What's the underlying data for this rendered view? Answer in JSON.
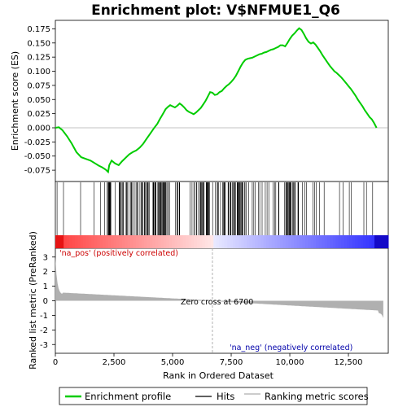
{
  "chart_data": {
    "type": "line",
    "title": "Enrichment plot: V$NFMUE1_Q6",
    "xlabel": "Rank in Ordered Dataset",
    "ylabel_top": "Enrichment score (ES)",
    "ylabel_bottom": "Ranked list metric (PreRanked)",
    "xlim": [
      0,
      14200
    ],
    "ylim_top": [
      -0.095,
      0.19
    ],
    "ylim_bottom": [
      -3.6,
      3.6
    ],
    "x_ticks": [
      0,
      2500,
      5000,
      7500,
      10000,
      12500
    ],
    "x_tick_labels": [
      "0",
      "2,500",
      "5,000",
      "7,500",
      "10,000",
      "12,500"
    ],
    "y_ticks_top": [
      0.175,
      0.15,
      0.125,
      0.1,
      0.075,
      0.05,
      0.025,
      0.0,
      -0.025,
      -0.05,
      -0.075
    ],
    "y_tick_labels_top": [
      "0.175",
      "0.150",
      "0.125",
      "0.100",
      "0.075",
      "0.050",
      "0.025",
      "0.000",
      "-0.025",
      "-0.050",
      "-0.075"
    ],
    "y_ticks_bottom": [
      3,
      2,
      1,
      0,
      -1,
      -2,
      -3
    ],
    "y_tick_labels_bottom": [
      "3",
      "2",
      "1",
      "0",
      "-1",
      "-2",
      "-3"
    ],
    "zero_cross_rank": 6700,
    "zero_cross_label": "Zero cross at 6700",
    "pos_label": "'na_pos' (positively correlated)",
    "neg_label": "'na_neg' (negatively correlated)",
    "colors": {
      "es_line": "#00cc00",
      "pos_text": "#cc0000",
      "neg_text": "#0000aa",
      "hit_line": "#000000",
      "metric_fill": "#b0b0b0",
      "zero_cross_line": "#a0a0a0"
    },
    "series": [
      {
        "name": "Enrichment profile",
        "x": [
          0,
          150,
          300,
          500,
          700,
          900,
          1100,
          1300,
          1500,
          1700,
          1850,
          2000,
          2150,
          2250,
          2300,
          2400,
          2550,
          2700,
          2850,
          3000,
          3150,
          3300,
          3450,
          3600,
          3750,
          3900,
          4050,
          4200,
          4350,
          4450,
          4550,
          4650,
          4700,
          4800,
          4900,
          5000,
          5100,
          5200,
          5300,
          5400,
          5500,
          5600,
          5700,
          5800,
          5900,
          6000,
          6100,
          6200,
          6300,
          6400,
          6500,
          6600,
          6700,
          6800,
          6900,
          7000,
          7100,
          7200,
          7300,
          7400,
          7500,
          7600,
          7700,
          7800,
          7900,
          8000,
          8100,
          8200,
          8300,
          8400,
          8500,
          8600,
          8700,
          8800,
          8900,
          9000,
          9100,
          9200,
          9300,
          9400,
          9500,
          9600,
          9700,
          9800,
          9900,
          10000,
          10100,
          10200,
          10300,
          10400,
          10500,
          10600,
          10700,
          10800,
          10900,
          11000,
          11100,
          11200,
          11300,
          11400,
          11500,
          11600,
          11700,
          11800,
          11900,
          12000,
          12100,
          12200,
          12300,
          12400,
          12500,
          12600,
          12700,
          12800,
          12900,
          13000,
          13100,
          13200,
          13300,
          13400,
          13500,
          13600,
          13700
        ],
        "y": [
          0.0,
          0.001,
          -0.004,
          -0.015,
          -0.028,
          -0.043,
          -0.052,
          -0.055,
          -0.058,
          -0.063,
          -0.067,
          -0.07,
          -0.074,
          -0.078,
          -0.066,
          -0.058,
          -0.063,
          -0.066,
          -0.059,
          -0.053,
          -0.047,
          -0.043,
          -0.04,
          -0.035,
          -0.028,
          -0.019,
          -0.01,
          -0.001,
          0.007,
          0.015,
          0.022,
          0.029,
          0.033,
          0.037,
          0.04,
          0.038,
          0.036,
          0.039,
          0.043,
          0.04,
          0.036,
          0.031,
          0.028,
          0.026,
          0.024,
          0.027,
          0.031,
          0.035,
          0.041,
          0.047,
          0.055,
          0.063,
          0.062,
          0.058,
          0.059,
          0.063,
          0.065,
          0.07,
          0.074,
          0.077,
          0.081,
          0.086,
          0.092,
          0.1,
          0.108,
          0.115,
          0.12,
          0.122,
          0.123,
          0.124,
          0.126,
          0.128,
          0.13,
          0.131,
          0.133,
          0.134,
          0.136,
          0.138,
          0.139,
          0.141,
          0.143,
          0.146,
          0.146,
          0.144,
          0.15,
          0.157,
          0.163,
          0.167,
          0.172,
          0.176,
          0.173,
          0.166,
          0.158,
          0.152,
          0.149,
          0.151,
          0.147,
          0.141,
          0.135,
          0.128,
          0.122,
          0.116,
          0.11,
          0.105,
          0.1,
          0.097,
          0.093,
          0.089,
          0.084,
          0.079,
          0.074,
          0.069,
          0.063,
          0.057,
          0.05,
          0.044,
          0.038,
          0.031,
          0.025,
          0.019,
          0.015,
          0.008,
          0.0
        ]
      },
      {
        "name": "Hits"
      },
      {
        "name": "Ranking metric scores"
      }
    ]
  }
}
